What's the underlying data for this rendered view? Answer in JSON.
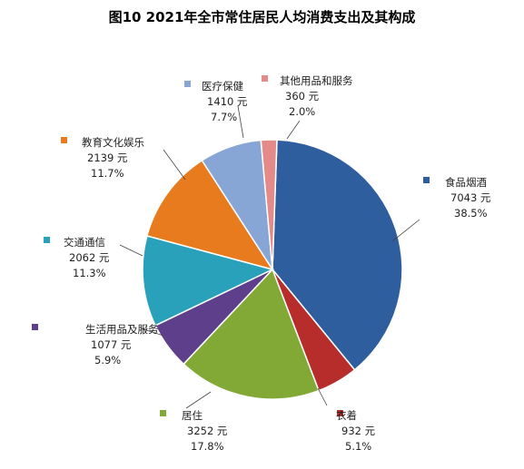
{
  "title": "图10 2021年全市常住居民人均消费支出及其构成",
  "chart_data": {
    "type": "pie",
    "title": "图10 2021年全市常住居民人均消费支出及其构成",
    "unit": "元",
    "slices": [
      {
        "name": "食品烟酒",
        "value": 7043,
        "percent": "38.5%",
        "color": "#2E5E9E"
      },
      {
        "name": "衣着",
        "value": 932,
        "percent": "5.1%",
        "color": "#B72D2B"
      },
      {
        "name": "居住",
        "value": 3252,
        "percent": "17.8%",
        "color": "#82A935"
      },
      {
        "name": "生活用品及服务",
        "value": 1077,
        "percent": "5.9%",
        "color": "#5E3F8C"
      },
      {
        "name": "交通通信",
        "value": 2062,
        "percent": "11.3%",
        "color": "#2AA1BB"
      },
      {
        "name": "教育文化娱乐",
        "value": 2139,
        "percent": "11.7%",
        "color": "#E87B1E"
      },
      {
        "name": "医疗保健",
        "value": 1410,
        "percent": "7.7%",
        "color": "#87A6D6"
      },
      {
        "name": "其他用品和服务",
        "value": 360,
        "percent": "2.0%",
        "color": "#E48B89"
      }
    ]
  }
}
